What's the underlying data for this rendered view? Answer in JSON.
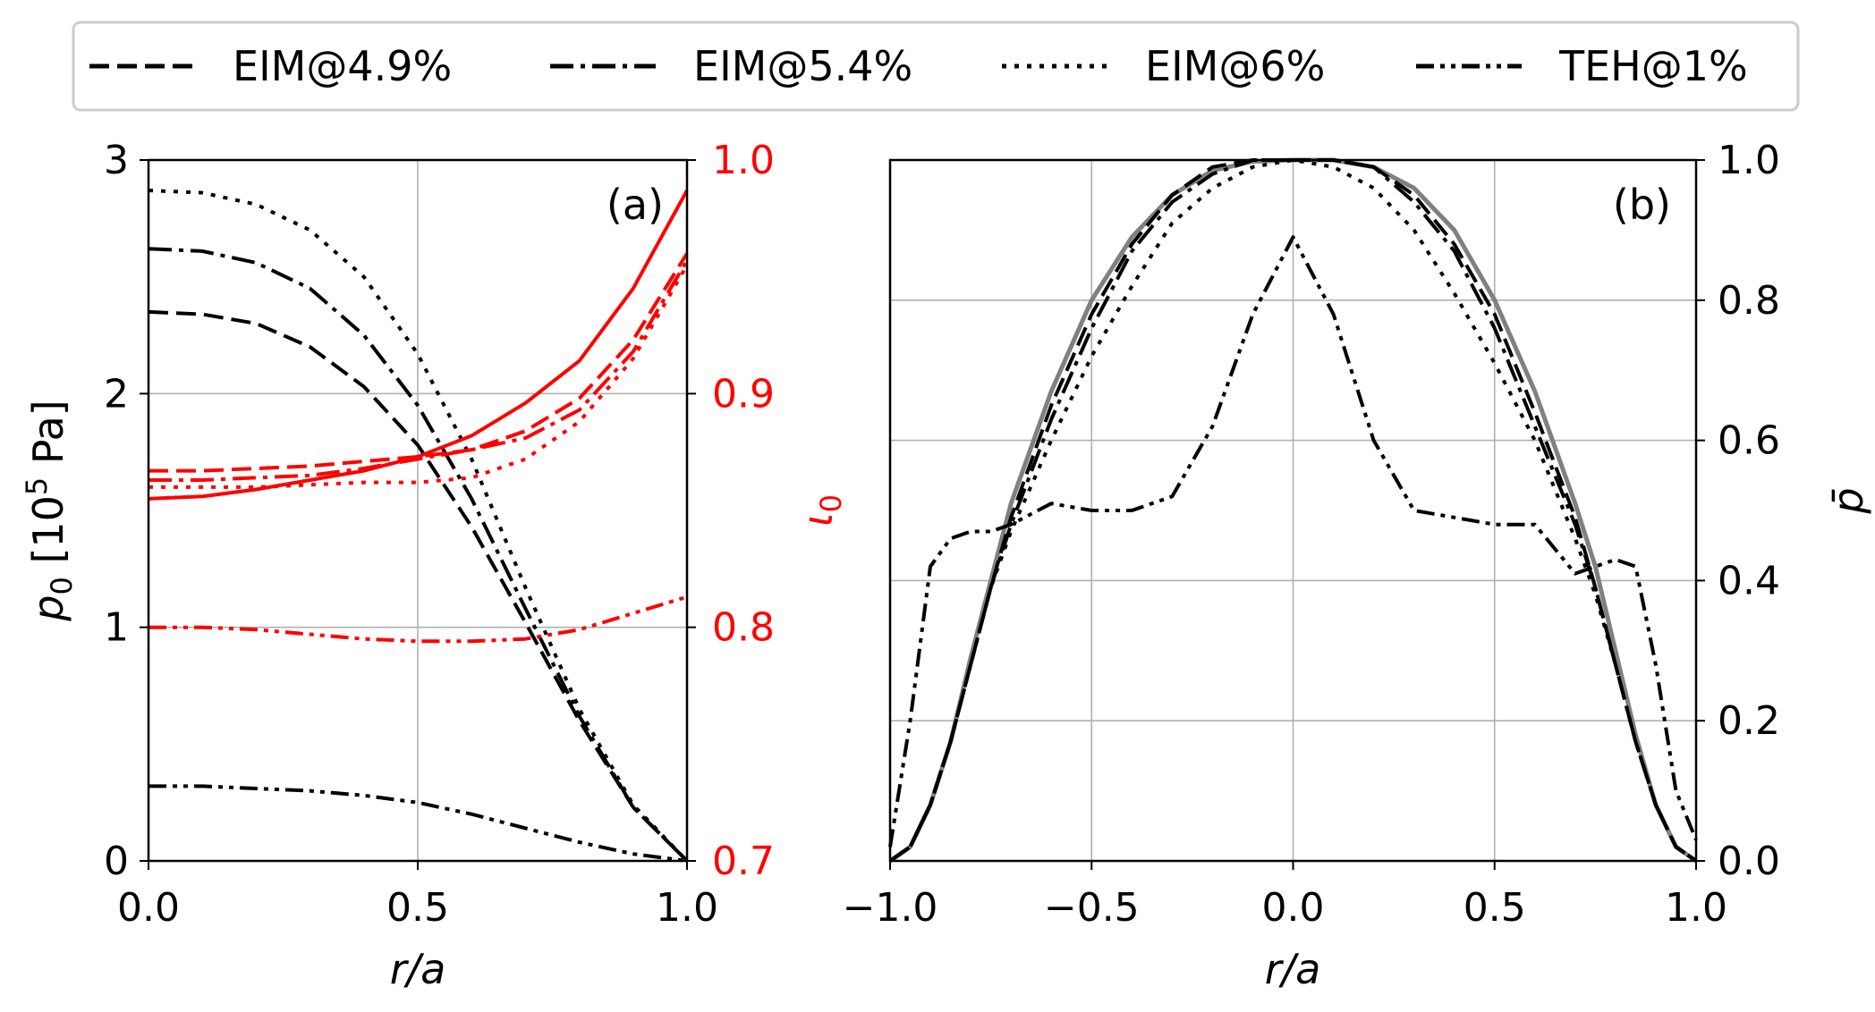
{
  "legend": {
    "entries": [
      {
        "label": "EIM@4.9%",
        "style": "dashed"
      },
      {
        "label": "EIM@5.4%",
        "style": "dashdot"
      },
      {
        "label": "EIM@6%",
        "style": "dotted"
      },
      {
        "label": "TEH@1%",
        "style": "dashdotdot"
      }
    ],
    "placement": "top, above both panels"
  },
  "colors": {
    "pressure": "#000000",
    "iota": "#ff0000",
    "envelope": "#808080",
    "grid": "#b0b0b0"
  },
  "chart_data": [
    {
      "type": "line",
      "panel_label": "(a)",
      "xlabel": "r/a",
      "ylabel_left": "p0 [10^5 Pa]",
      "ylabel_right": "ι0",
      "xlim": [
        0,
        1
      ],
      "ylim_left": [
        0,
        3
      ],
      "ylim_right": [
        0.7,
        1.0
      ],
      "xticks": [
        "0.0",
        "0.5",
        "1.0"
      ],
      "yticks_left": [
        "0",
        "1",
        "2",
        "3"
      ],
      "yticks_right": [
        "0.7",
        "0.8",
        "0.9",
        "1.0"
      ],
      "grid": true,
      "x": [
        0,
        0.1,
        0.2,
        0.3,
        0.4,
        0.5,
        0.6,
        0.7,
        0.8,
        0.9,
        1.0
      ],
      "series": [
        {
          "name": "EIM@4.9%",
          "axis": "left",
          "style": "dashed",
          "color": "#000000",
          "values": [
            2.35,
            2.34,
            2.3,
            2.2,
            2.03,
            1.78,
            1.43,
            1.02,
            0.6,
            0.23,
            0.0
          ]
        },
        {
          "name": "EIM@5.4%",
          "axis": "left",
          "style": "dashdot",
          "color": "#000000",
          "values": [
            2.62,
            2.61,
            2.56,
            2.45,
            2.25,
            1.95,
            1.55,
            1.08,
            0.62,
            0.23,
            0.0
          ]
        },
        {
          "name": "EIM@6%",
          "axis": "left",
          "style": "dotted",
          "color": "#000000",
          "values": [
            2.87,
            2.86,
            2.81,
            2.7,
            2.5,
            2.17,
            1.72,
            1.17,
            0.65,
            0.24,
            0.0
          ]
        },
        {
          "name": "TEH@1%",
          "axis": "left",
          "style": "dashdotdot",
          "color": "#000000",
          "values": [
            0.32,
            0.32,
            0.31,
            0.3,
            0.28,
            0.25,
            0.2,
            0.14,
            0.08,
            0.03,
            0.0
          ]
        },
        {
          "axis": "right",
          "style": "solid",
          "color": "#ff0000",
          "values": [
            0.855,
            0.856,
            0.859,
            0.863,
            0.867,
            0.873,
            0.882,
            0.896,
            0.914,
            0.945,
            0.987
          ]
        },
        {
          "name": "EIM@4.9%",
          "axis": "right",
          "style": "dashed",
          "color": "#ff0000",
          "values": [
            0.867,
            0.867,
            0.868,
            0.869,
            0.871,
            0.873,
            0.876,
            0.884,
            0.898,
            0.923,
            0.96
          ]
        },
        {
          "name": "EIM@5.4%",
          "axis": "right",
          "style": "dashdot",
          "color": "#ff0000",
          "values": [
            0.863,
            0.863,
            0.864,
            0.865,
            0.868,
            0.872,
            0.876,
            0.881,
            0.893,
            0.918,
            0.957
          ]
        },
        {
          "name": "EIM@6%",
          "axis": "right",
          "style": "dotted",
          "color": "#ff0000",
          "values": [
            0.86,
            0.86,
            0.86,
            0.861,
            0.862,
            0.862,
            0.864,
            0.872,
            0.888,
            0.915,
            0.955
          ]
        },
        {
          "name": "TEH@1%",
          "axis": "right",
          "style": "dashdotdot",
          "color": "#ff0000",
          "values": [
            0.8,
            0.8,
            0.799,
            0.797,
            0.795,
            0.794,
            0.794,
            0.795,
            0.799,
            0.806,
            0.813
          ]
        }
      ]
    },
    {
      "type": "line",
      "panel_label": "(b)",
      "xlabel": "r/a",
      "ylabel_right": "p̄",
      "xlim": [
        -1,
        1
      ],
      "ylim_right": [
        0,
        1
      ],
      "xticks": [
        "−1.0",
        "−0.5",
        "0.0",
        "0.5",
        "1.0"
      ],
      "yticks_right": [
        "0.0",
        "0.2",
        "0.4",
        "0.6",
        "0.8",
        "1.0"
      ],
      "grid": true,
      "x": [
        -1,
        -0.95,
        -0.9,
        -0.85,
        -0.8,
        -0.75,
        -0.7,
        -0.6,
        -0.5,
        -0.4,
        -0.3,
        -0.2,
        -0.1,
        0,
        0.1,
        0.2,
        0.3,
        0.4,
        0.5,
        0.6,
        0.7,
        0.75,
        0.8,
        0.85,
        0.9,
        0.95,
        1
      ],
      "series": [
        {
          "style": "solid",
          "color": "#808080",
          "values": [
            0,
            0.02,
            0.08,
            0.17,
            0.29,
            0.4,
            0.51,
            0.67,
            0.8,
            0.89,
            0.95,
            0.985,
            0.998,
            1,
            1,
            0.99,
            0.96,
            0.9,
            0.8,
            0.67,
            0.51,
            0.42,
            0.3,
            0.18,
            0.08,
            0.02,
            0
          ]
        },
        {
          "name": "EIM@4.9%",
          "style": "dashed",
          "color": "#000000",
          "values": [
            0,
            0.02,
            0.08,
            0.17,
            0.28,
            0.39,
            0.49,
            0.65,
            0.78,
            0.88,
            0.95,
            0.99,
            1,
            1,
            1,
            0.99,
            0.95,
            0.88,
            0.78,
            0.64,
            0.49,
            0.39,
            0.28,
            0.17,
            0.08,
            0.02,
            0
          ]
        },
        {
          "name": "EIM@5.4%",
          "style": "dashdot",
          "color": "#000000",
          "values": [
            0,
            0.02,
            0.08,
            0.17,
            0.28,
            0.39,
            0.48,
            0.63,
            0.76,
            0.87,
            0.94,
            0.98,
            1,
            1,
            1,
            0.99,
            0.94,
            0.87,
            0.76,
            0.62,
            0.48,
            0.39,
            0.28,
            0.17,
            0.08,
            0.02,
            0
          ]
        },
        {
          "name": "EIM@6%",
          "style": "dotted",
          "color": "#000000",
          "values": [
            0,
            0.02,
            0.08,
            0.17,
            0.28,
            0.39,
            0.47,
            0.6,
            0.72,
            0.82,
            0.91,
            0.96,
            0.99,
            1,
            0.99,
            0.96,
            0.9,
            0.81,
            0.71,
            0.6,
            0.46,
            0.38,
            0.28,
            0.17,
            0.08,
            0.02,
            0
          ]
        },
        {
          "name": "TEH@1%",
          "style": "dashdotdot",
          "color": "#000000",
          "values": [
            0.02,
            0.2,
            0.42,
            0.46,
            0.47,
            0.47,
            0.48,
            0.51,
            0.5,
            0.5,
            0.52,
            0.62,
            0.78,
            0.89,
            0.78,
            0.6,
            0.5,
            0.49,
            0.48,
            0.48,
            0.41,
            0.42,
            0.43,
            0.42,
            0.28,
            0.1,
            0.03
          ]
        }
      ]
    }
  ]
}
